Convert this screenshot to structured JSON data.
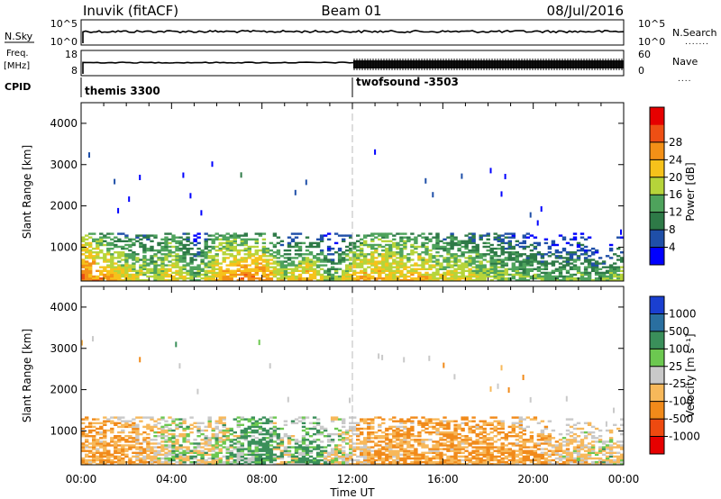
{
  "header": {
    "station": "Inuvik (fitACF)",
    "beam": "Beam 01",
    "date": "08/Jul/2016"
  },
  "summary_panel": {
    "nsky_label": "N.Sky",
    "nsky_ticks": [
      "10^5",
      "10^0"
    ],
    "nsearch_label": "N.Search",
    "nsearch_ticks": [
      "10^5",
      "10^0"
    ],
    "freq_label": "Freq.",
    "freq_unit": "[MHz]",
    "freq_ticks": [
      "18",
      "8"
    ],
    "nave_label": "Nave",
    "nave_ticks": [
      "60",
      "0"
    ],
    "cpid_label": "CPID",
    "cpid_segments": [
      {
        "name": "themis 3300",
        "start_hour": 0
      },
      {
        "name": "twofsound -3503",
        "start_hour": 12
      }
    ]
  },
  "chart_data": [
    {
      "type": "heatmap",
      "title": "",
      "xlabel": "",
      "ylabel": "Slant Range [km]",
      "x_range_hours": [
        0,
        24
      ],
      "ylim": [
        180,
        4500
      ],
      "yticks": [
        1000,
        2000,
        3000,
        4000
      ],
      "colorbar": {
        "label": "Power [dB]",
        "levels": [
          0,
          4,
          8,
          12,
          16,
          20,
          24,
          28,
          32
        ],
        "tick_labels": [
          "4",
          "8",
          "12",
          "16",
          "20",
          "24",
          "28"
        ],
        "colors": [
          "#0000ff",
          "#1f4fa8",
          "#2e7a47",
          "#4ea35c",
          "#b6d43a",
          "#f6c21b",
          "#f39017",
          "#ee4f14",
          "#e60000"
        ]
      },
      "data_profile": {
        "x_hours": [
          0.0,
          1.0,
          2.0,
          3.0,
          4.0,
          5.0,
          6.0,
          7.0,
          8.0,
          9.0,
          10.0,
          11.0,
          12.0,
          13.0,
          14.0,
          15.0,
          16.0,
          17.0,
          18.0,
          19.0,
          20.0,
          21.0,
          22.0,
          23.0,
          24.0
        ],
        "echo_top_km": [
          2800,
          2000,
          1800,
          2000,
          2600,
          1300,
          2500,
          2000,
          2300,
          1200,
          1800,
          1300,
          1800,
          2500,
          2600,
          2200,
          2000,
          2000,
          2000,
          1800,
          1400,
          1300,
          1400,
          1000,
          1400
        ],
        "peak_power_db": [
          28,
          26,
          22,
          18,
          22,
          16,
          24,
          28,
          26,
          20,
          26,
          14,
          24,
          24,
          22,
          24,
          20,
          20,
          18,
          16,
          16,
          14,
          16,
          14,
          20
        ]
      }
    },
    {
      "type": "heatmap",
      "title": "",
      "xlabel": "Time UT",
      "ylabel": "Slant Range [km]",
      "x_range_hours": [
        0,
        24
      ],
      "xticks": [
        "00:00",
        "04:00",
        "08:00",
        "12:00",
        "16:00",
        "20:00",
        "00:00"
      ],
      "ylim": [
        180,
        4500
      ],
      "yticks": [
        1000,
        2000,
        3000,
        4000
      ],
      "colorbar": {
        "label": "Velocity [m s⁻¹]",
        "tick_labels": [
          "1000",
          "500",
          "100",
          "25",
          "-25",
          "-100",
          "-500",
          "-1000"
        ],
        "colors": [
          "#1a3fd0",
          "#2a6fa0",
          "#3a8f5a",
          "#6cc850",
          "#c9c9c9",
          "#f7b85a",
          "#f18a1a",
          "#ee4a10",
          "#e60000"
        ]
      },
      "data_profile": {
        "x_hours": [
          0.0,
          1.0,
          2.0,
          3.0,
          4.0,
          5.0,
          6.0,
          7.0,
          8.0,
          9.0,
          10.0,
          11.0,
          12.0,
          13.0,
          14.0,
          15.0,
          16.0,
          17.0,
          18.0,
          19.0,
          20.0,
          21.0,
          22.0,
          23.0,
          24.0
        ],
        "echo_top_km": [
          2800,
          2000,
          1800,
          2000,
          2600,
          1300,
          2500,
          2000,
          2300,
          1200,
          1800,
          1300,
          1800,
          2500,
          2600,
          2200,
          2000,
          2000,
          2000,
          1800,
          1400,
          1300,
          1400,
          1000,
          1400
        ],
        "dominant_velocity_ms": [
          -100,
          -100,
          -100,
          -50,
          0,
          0,
          0,
          50,
          100,
          0,
          100,
          0,
          -50,
          -100,
          -100,
          -100,
          -100,
          -100,
          -100,
          -100,
          -100,
          -50,
          -50,
          0,
          -50
        ]
      }
    }
  ]
}
